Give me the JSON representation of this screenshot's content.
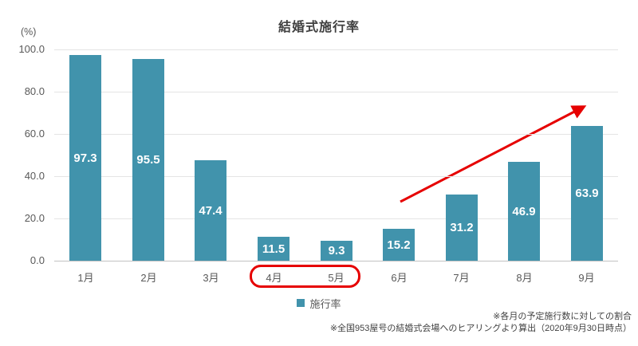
{
  "title": "結婚式施行率",
  "y_axis": {
    "unit_label": "(%)",
    "ticks": [
      "100.0",
      "80.0",
      "60.0",
      "40.0",
      "20.0",
      "0.0"
    ]
  },
  "chart_data": {
    "type": "bar",
    "categories": [
      "1月",
      "2月",
      "3月",
      "4月",
      "5月",
      "6月",
      "7月",
      "8月",
      "9月"
    ],
    "values": [
      97.3,
      95.5,
      47.4,
      11.5,
      9.3,
      15.2,
      31.2,
      46.9,
      63.9
    ],
    "title": "結婚式施行率",
    "xlabel": "",
    "ylabel": "(%)",
    "ylim": [
      0,
      100
    ],
    "grid": true,
    "legend_position": "bottom",
    "series_name": "施行率",
    "annotations": {
      "highlighted_categories": [
        "4月",
        "5月"
      ],
      "trend_arrow": "red upward arrow from 6月 area to above 9月 bar"
    }
  },
  "legend": {
    "label": "施行率"
  },
  "footnotes": [
    "※各月の予定施行数に対しての割合",
    "※全国953屋号の結婚式会場へのヒアリングより算出（2020年9月30日時点）"
  ],
  "colors": {
    "bar": "#4193ac",
    "red": "#e60000",
    "grid": "#e4e4e4",
    "baseline": "#c2c2c2",
    "axis_text": "#595959",
    "title_text": "#404040",
    "value_text": "#ffffff"
  }
}
